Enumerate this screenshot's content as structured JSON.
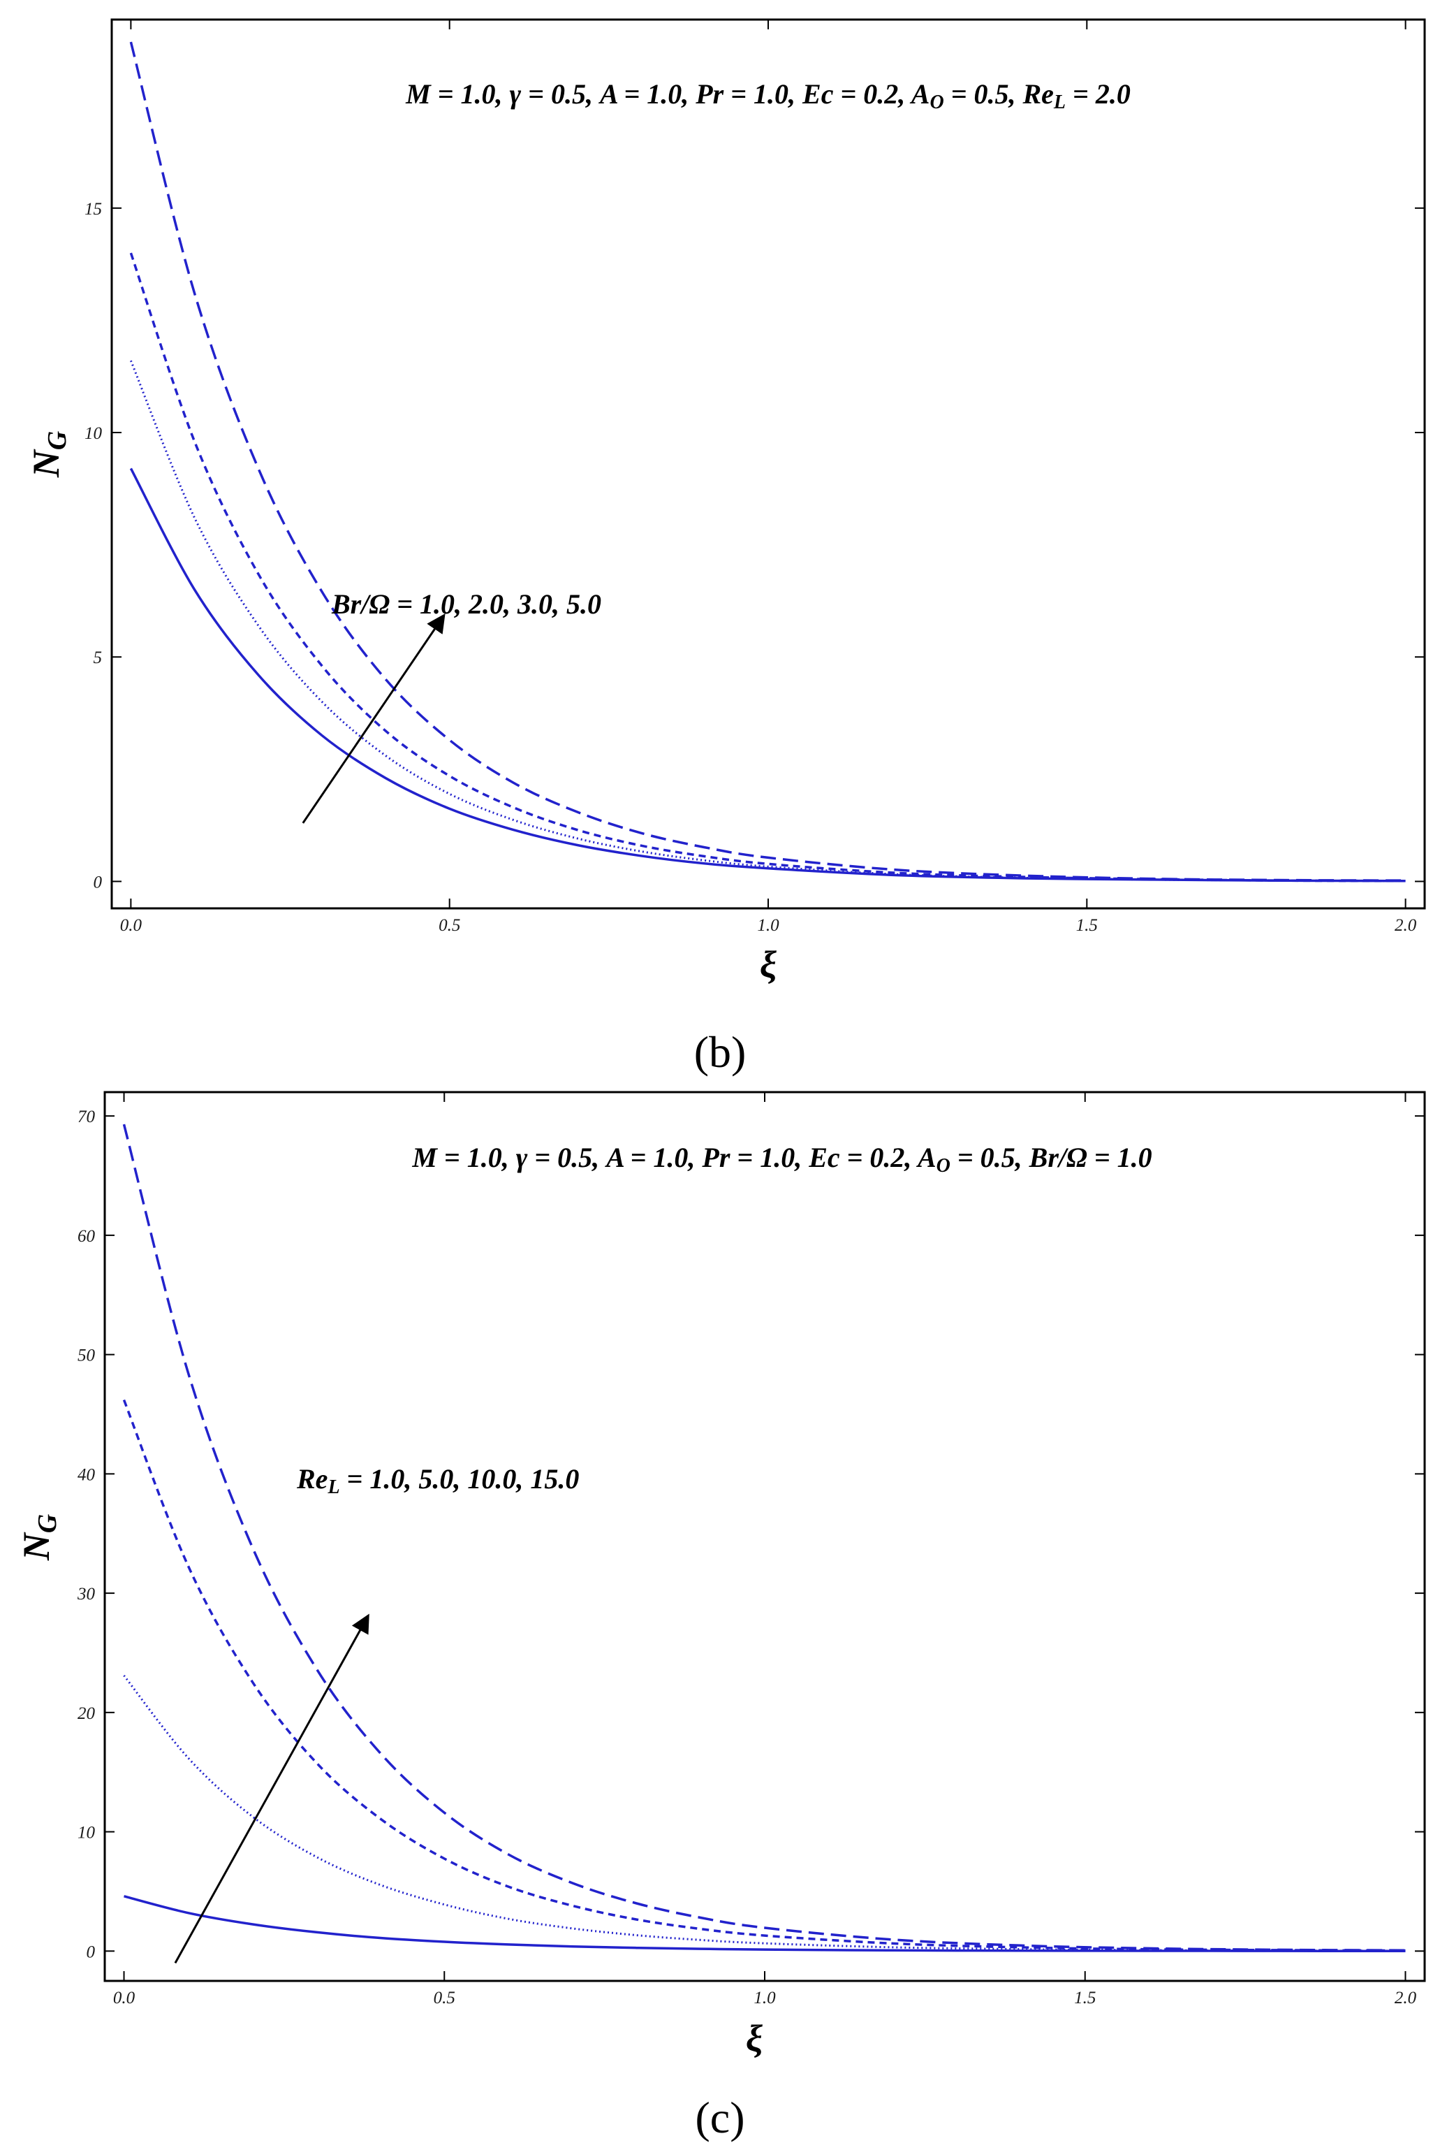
{
  "chart_data": [
    {
      "type": "line",
      "panel_label": "(b)",
      "params_text": "M = 1.0, γ = 0.5, A = 1.0, Pr = 1.0, Ec = 0.2, A_O = 0.5, Re_L = 2.0",
      "arrow_label": "Br/Ω = 1.0, 2.0, 3.0, 5.0",
      "xlabel": "ξ",
      "ylabel": "N_G",
      "xlim": [
        -0.03,
        2.03
      ],
      "ylim": [
        -0.6,
        19.2
      ],
      "xticks": [
        0.0,
        0.5,
        1.0,
        1.5,
        2.0
      ],
      "xtick_labels": [
        "0.0",
        "0.5",
        "1.0",
        "1.5",
        "2.0"
      ],
      "yticks": [
        0,
        5,
        10,
        15
      ],
      "ytick_labels": [
        "0",
        "5",
        "10",
        "15"
      ],
      "grid": false,
      "color": "#2222cc",
      "arrow": {
        "from": [
          0.27,
          1.3
        ],
        "to": [
          0.49,
          5.9
        ]
      },
      "series": [
        {
          "style": "solid",
          "x": [
            0,
            0.1,
            0.2,
            0.3,
            0.4,
            0.5,
            0.6,
            0.7,
            0.8,
            0.9,
            1.0,
            1.2,
            1.4,
            1.6,
            1.8,
            2.0
          ],
          "y": [
            9.2,
            6.5,
            4.6,
            3.25,
            2.3,
            1.62,
            1.15,
            0.81,
            0.57,
            0.4,
            0.29,
            0.14,
            0.07,
            0.04,
            0.02,
            0.01
          ]
        },
        {
          "style": "dotted",
          "x": [
            0,
            0.1,
            0.2,
            0.3,
            0.4,
            0.5,
            0.6,
            0.7,
            0.8,
            0.9,
            1.0,
            1.2,
            1.4,
            1.6,
            1.8,
            2.0
          ],
          "y": [
            11.6,
            8.1,
            5.7,
            4.0,
            2.8,
            1.95,
            1.37,
            0.96,
            0.67,
            0.47,
            0.33,
            0.16,
            0.08,
            0.04,
            0.02,
            0.01
          ]
        },
        {
          "style": "short-dash",
          "x": [
            0,
            0.1,
            0.2,
            0.3,
            0.4,
            0.5,
            0.6,
            0.7,
            0.8,
            0.9,
            1.0,
            1.2,
            1.4,
            1.6,
            1.8,
            2.0
          ],
          "y": [
            14.0,
            9.8,
            6.85,
            4.8,
            3.35,
            2.35,
            1.65,
            1.15,
            0.8,
            0.56,
            0.39,
            0.19,
            0.1,
            0.05,
            0.02,
            0.01
          ]
        },
        {
          "style": "long-dash",
          "x": [
            0,
            0.1,
            0.2,
            0.3,
            0.4,
            0.5,
            0.6,
            0.7,
            0.8,
            0.9,
            1.0,
            1.2,
            1.4,
            1.6,
            1.8,
            2.0
          ],
          "y": [
            18.7,
            13.1,
            9.2,
            6.45,
            4.5,
            3.15,
            2.2,
            1.55,
            1.08,
            0.76,
            0.53,
            0.26,
            0.13,
            0.06,
            0.03,
            0.02
          ]
        }
      ]
    },
    {
      "type": "line",
      "panel_label": "(c)",
      "params_text": "M = 1.0, γ = 0.5, A = 1.0, Pr = 1.0, Ec = 0.2, A_O = 0.5, Br/Ω = 1.0",
      "arrow_label": "Re_L = 1.0, 5.0, 10.0, 15.0",
      "xlabel": "ξ",
      "ylabel": "N_G",
      "xlim": [
        -0.03,
        2.03
      ],
      "ylim": [
        -2.5,
        72.0
      ],
      "xticks": [
        0.0,
        0.5,
        1.0,
        1.5,
        2.0
      ],
      "xtick_labels": [
        "0.0",
        "0.5",
        "1.0",
        "1.5",
        "2.0"
      ],
      "yticks": [
        0,
        10,
        20,
        30,
        40,
        50,
        60,
        70
      ],
      "ytick_labels": [
        "0",
        "10",
        "20",
        "30",
        "40",
        "50",
        "60",
        "70"
      ],
      "grid": false,
      "color": "#2222cc",
      "arrow": {
        "from": [
          0.08,
          -1.0
        ],
        "to": [
          0.38,
          28.0
        ]
      },
      "series": [
        {
          "style": "solid",
          "x": [
            0,
            0.1,
            0.2,
            0.3,
            0.4,
            0.5,
            0.6,
            0.7,
            0.8,
            0.9,
            1.0,
            1.2,
            1.4,
            1.6,
            1.8,
            2.0
          ],
          "y": [
            4.6,
            3.2,
            2.25,
            1.58,
            1.1,
            0.78,
            0.55,
            0.38,
            0.27,
            0.19,
            0.13,
            0.06,
            0.03,
            0.02,
            0.01,
            0.0
          ]
        },
        {
          "style": "dotted",
          "x": [
            0,
            0.1,
            0.2,
            0.3,
            0.4,
            0.5,
            0.6,
            0.7,
            0.8,
            0.9,
            1.0,
            1.2,
            1.4,
            1.6,
            1.8,
            2.0
          ],
          "y": [
            23.1,
            16.2,
            11.3,
            7.9,
            5.55,
            3.9,
            2.7,
            1.9,
            1.33,
            0.93,
            0.65,
            0.32,
            0.16,
            0.08,
            0.04,
            0.02
          ]
        },
        {
          "style": "short-dash",
          "x": [
            0,
            0.1,
            0.2,
            0.3,
            0.4,
            0.5,
            0.6,
            0.7,
            0.8,
            0.9,
            1.0,
            1.2,
            1.4,
            1.6,
            1.8,
            2.0
          ],
          "y": [
            46.2,
            32.3,
            22.6,
            15.8,
            11.1,
            7.75,
            5.4,
            3.8,
            2.65,
            1.86,
            1.3,
            0.64,
            0.31,
            0.15,
            0.08,
            0.04
          ]
        },
        {
          "style": "long-dash",
          "x": [
            0,
            0.1,
            0.2,
            0.3,
            0.4,
            0.5,
            0.6,
            0.7,
            0.8,
            0.9,
            1.0,
            1.2,
            1.4,
            1.6,
            1.8,
            2.0
          ],
          "y": [
            69.3,
            48.5,
            33.9,
            23.7,
            16.6,
            11.6,
            8.1,
            5.7,
            4.0,
            2.8,
            1.95,
            0.96,
            0.47,
            0.23,
            0.11,
            0.06
          ]
        }
      ]
    }
  ]
}
